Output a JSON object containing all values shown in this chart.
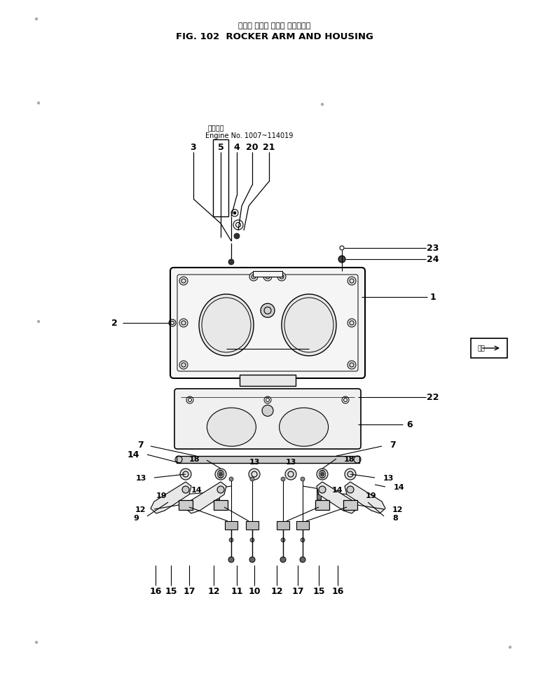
{
  "title_japanese": "ロッカ アーム および ハウジング",
  "title_english": "FIG. 102  ROCKER ARM AND HOUSING",
  "bg_color": "#ffffff",
  "line_color": "#000000",
  "engine_note_japanese": "適用序號",
  "engine_note_english": "Engine No. 1007~114019",
  "fig_width": 7.85,
  "fig_height": 9.79,
  "dpi": 100
}
